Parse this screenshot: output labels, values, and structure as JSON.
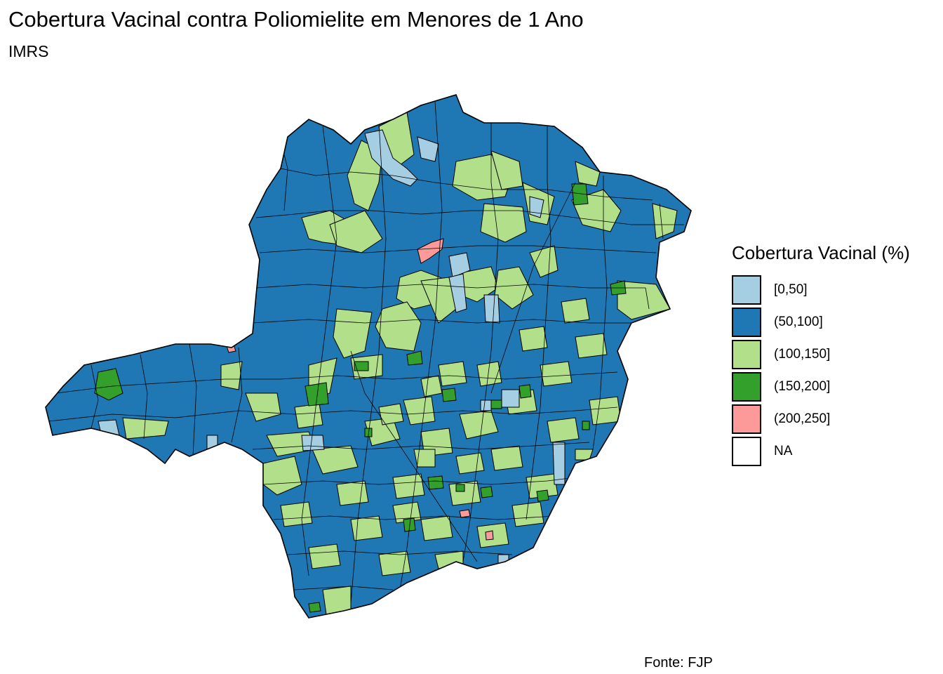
{
  "map": {
    "title": "Cobertura Vacinal contra Poliomielite em Menores de 1 Ano",
    "subtitle": "IMRS",
    "caption": "Fonte: FJP",
    "region_shape": "state of Minas Gerais divided into municipality polygons, black borders",
    "legend": {
      "title": "Cobertura Vacinal (%)",
      "items": [
        {
          "label": "[0,50]",
          "color": "#a6cee3"
        },
        {
          "label": "(50,100]",
          "color": "#1f78b4"
        },
        {
          "label": "(100,150]",
          "color": "#b2df8a"
        },
        {
          "label": "(150,200]",
          "color": "#33a02c"
        },
        {
          "label": "(200,250]",
          "color": "#fb9a99"
        },
        {
          "label": "NA",
          "color": "#ffffff"
        }
      ]
    }
  }
}
